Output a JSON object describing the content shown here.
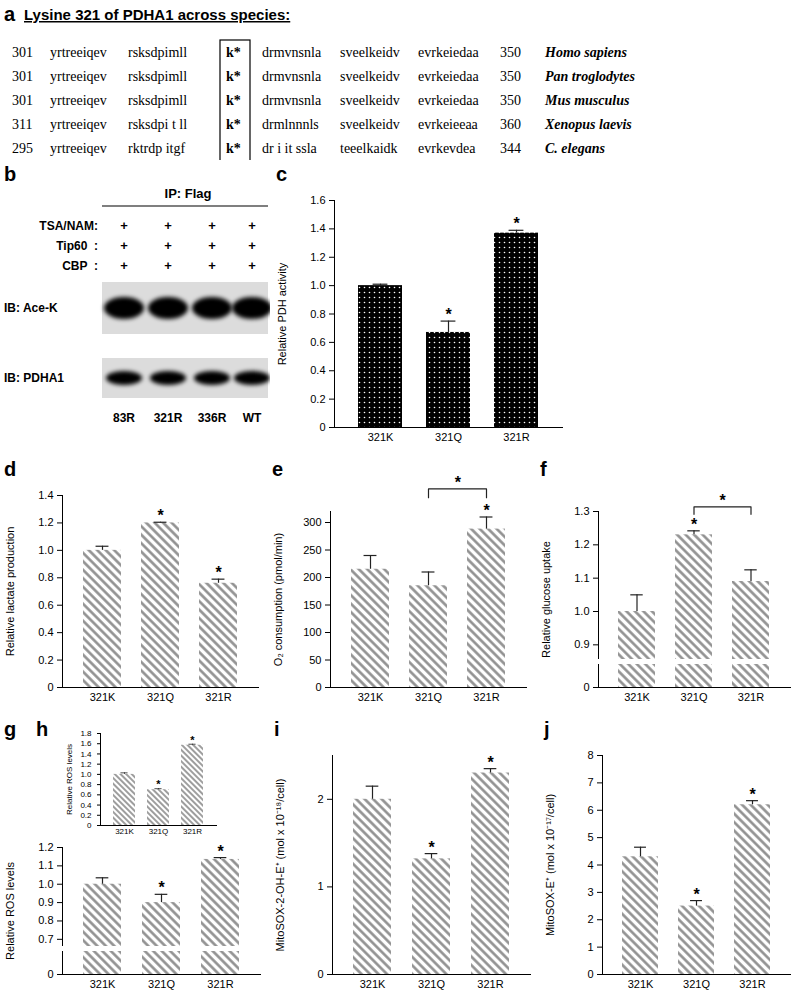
{
  "alignment": {
    "title": "a",
    "heading": "Lysine 321 of PDHA1 across species:",
    "rows": [
      {
        "start": 301,
        "segments": [
          "yrtreeiqev",
          "rsksdpimll",
          "k*",
          "drmvnsnla",
          "sveelkeidv",
          "evrkeiedaa"
        ],
        "end": 350,
        "species": "Homo sapiens"
      },
      {
        "start": 301,
        "segments": [
          "yrtreeiqev",
          "rsksdpimll",
          "k*",
          "drmvnsnla",
          "sveelkeidv",
          "evrkeiedaa"
        ],
        "end": 350,
        "species": "Pan troglodytes"
      },
      {
        "start": 301,
        "segments": [
          "yrtreeiqev",
          "rsksdpimll",
          "k*",
          "drmvnsnla",
          "sveelkeidv",
          "evrkeiedaa"
        ],
        "end": 350,
        "species": "Mus musculus"
      },
      {
        "start": 311,
        "segments": [
          "yrtreeiqev",
          "rsksdpi t ll",
          "k*",
          "drmlnnnls",
          "sveelkeidv",
          "evrkeieeaa"
        ],
        "end": 360,
        "species": "Xenopus laevis"
      },
      {
        "start": 295,
        "segments": [
          "yrtreeiqev",
          "rktrdp itgf",
          "k*",
          "dr i it ssla",
          "teeelkaidk",
          "evrkevdea"
        ],
        "end": 344,
        "species": "C. elegans"
      }
    ]
  },
  "blot": {
    "title": "b",
    "header": "IP: Flag",
    "treatments": [
      {
        "name": "TSA/NAM:",
        "marks": [
          "+",
          "+",
          "+",
          "+"
        ]
      },
      {
        "name": "Tip60  :",
        "marks": [
          "+",
          "+",
          "+",
          "+"
        ]
      },
      {
        "name": "CBP  :",
        "marks": [
          "+",
          "+",
          "+",
          "+"
        ]
      }
    ],
    "bands": [
      "IB: Ace-K",
      "IB: PDHA1"
    ],
    "lanes": [
      "83R",
      "321R",
      "336R",
      "WT"
    ]
  },
  "chart_data": [
    {
      "type": "bar",
      "title": "c",
      "categories": [
        "321K",
        "321Q",
        "321R"
      ],
      "values": [
        1,
        0.67,
        1.37
      ],
      "errors": [
        0.01,
        0.08,
        0.02
      ],
      "stars": [
        null,
        "*",
        "*"
      ],
      "color": "#000000",
      "ylabel": "Relative PDH activity",
      "ylim": [
        0,
        1.6
      ],
      "yticks": [
        0,
        0.2,
        0.4,
        0.6,
        0.8,
        {
          "value": 1,
          "label": "1.0"
        },
        1.2,
        1.4,
        1.6
      ]
    },
    {
      "type": "bar",
      "title": "d",
      "categories": [
        "321K",
        "321Q",
        "321R"
      ],
      "values": [
        1,
        1.2,
        0.76
      ],
      "errors": [
        0.03,
        0.005,
        0.03
      ],
      "stars": [
        null,
        "*",
        "*"
      ],
      "color": "#8c8c8c",
      "ylabel": "Relative lactate production",
      "ylim": [
        0,
        1.4
      ],
      "yticks": [
        0,
        0.2,
        0.4,
        0.6,
        0.8,
        {
          "value": 1,
          "label": "1.0"
        },
        1.2,
        1.4
      ]
    },
    {
      "type": "bar",
      "title": "e",
      "categories": [
        "321K",
        "321Q",
        "321R"
      ],
      "values": [
        215,
        185,
        288
      ],
      "errors": [
        25,
        25,
        22
      ],
      "stars": [
        null,
        null,
        "*"
      ],
      "brackets": [
        {
          "from": "321Q",
          "to": "321R",
          "label": "*"
        }
      ],
      "color": "#8c8c8c",
      "ylabel": "O₂ consumption (pmol/min)",
      "ylim": [
        0,
        320
      ],
      "yticks": [
        0,
        50,
        100,
        150,
        200,
        250,
        300
      ]
    },
    {
      "type": "bar",
      "title": "f",
      "categories": [
        "321K",
        "321Q",
        "321R"
      ],
      "values": [
        1,
        1.23,
        1.09
      ],
      "errors": [
        0.05,
        0.012,
        0.035
      ],
      "stars": [
        null,
        "*",
        null
      ],
      "brackets": [
        {
          "from": "321Q",
          "to": "321R",
          "label": "*"
        }
      ],
      "color": "#8c8c8c",
      "ylabel": "Relative glucose uptake",
      "ylim": [
        0,
        1.3
      ],
      "yticks": [
        0,
        0.9,
        {
          "value": 1,
          "label": "1.0"
        },
        1.1,
        1.2,
        1.3
      ]
    },
    {
      "type": "bar",
      "title": "g",
      "categories": [
        "321K",
        "321Q",
        "321R"
      ],
      "values": [
        1,
        0.9,
        1.135
      ],
      "errors": [
        0.035,
        0.045,
        0.01
      ],
      "stars": [
        null,
        "*",
        "*"
      ],
      "color": "#8c8c8c",
      "ylabel": "Relative ROS levels",
      "ylim": [
        0,
        1.2
      ],
      "yticks": [
        0,
        0.7,
        0.8,
        0.9,
        {
          "value": 1,
          "label": "1.0"
        },
        1.1,
        1.2
      ],
      "inset": {
        "type": "bar",
        "title": "h",
        "categories": [
          "321K",
          "321Q",
          "321R"
        ],
        "values": [
          1,
          0.7,
          1.57
        ],
        "errors": [
          0.03,
          0.02,
          0.02
        ],
        "stars": [
          null,
          "*",
          "*"
        ],
        "color": "#8c8c8c",
        "ylabel": "Relative ROS levels",
        "ylim": [
          0,
          1.8
        ],
        "yticks": [
          0,
          0.2,
          0.4,
          0.6,
          0.8,
          {
            "value": 1,
            "label": "1.0"
          },
          1.2,
          1.4,
          1.6,
          1.8
        ]
      }
    },
    {
      "type": "bar",
      "title": "i",
      "categories": [
        "321K",
        "321Q",
        "321R"
      ],
      "values": [
        2,
        1.32,
        2.3
      ],
      "errors": [
        0.15,
        0.06,
        0.05
      ],
      "stars": [
        null,
        "*",
        "*"
      ],
      "color": "#8c8c8c",
      "ylabel": "MitoSOX-2-OH-E⁺ (mol x 10⁻¹⁸/cell)",
      "ylim": [
        0,
        2.5
      ],
      "yticks": [
        0,
        1,
        2
      ]
    },
    {
      "type": "bar",
      "title": "j",
      "categories": [
        "321K",
        "321Q",
        "321R"
      ],
      "values": [
        4.3,
        2.5,
        6.2
      ],
      "errors": [
        0.35,
        0.2,
        0.15
      ],
      "stars": [
        null,
        "*",
        "*"
      ],
      "color": "#8c8c8c",
      "ylabel": "MitoSOX-E⁺ (mol x 10⁻¹⁷/cell)",
      "ylim": [
        0,
        8
      ],
      "yticks": [
        0,
        1,
        2,
        3,
        4,
        5,
        6,
        7,
        8
      ]
    }
  ]
}
